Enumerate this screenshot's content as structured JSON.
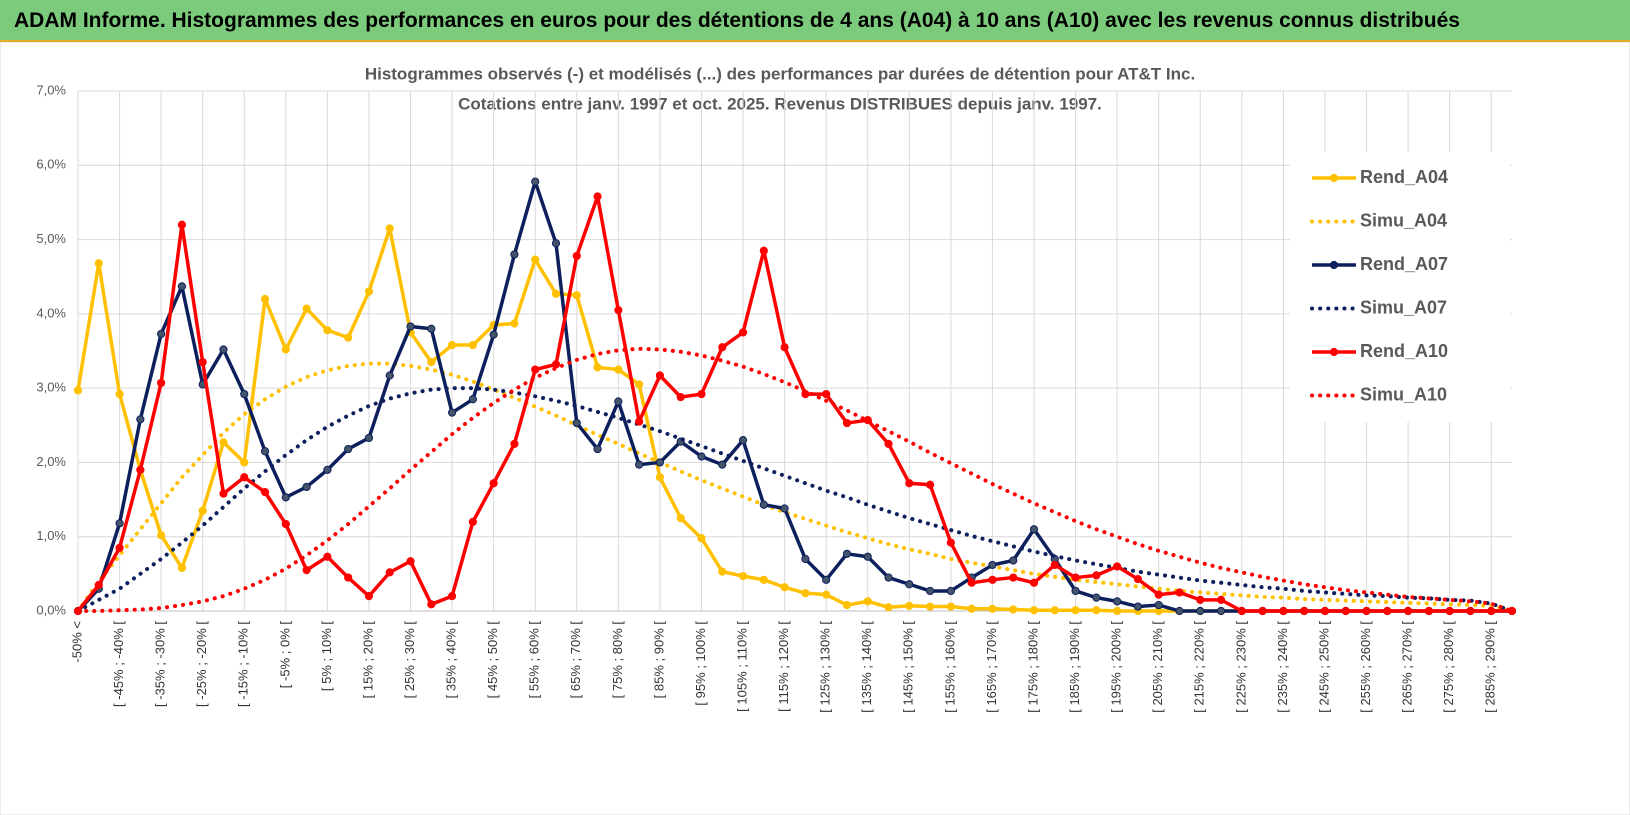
{
  "header": {
    "title": "ADAM Informe. Histogrammes des performances en euros pour des détentions de 4 ans (A04) à 10 ans (A10) avec les revenus connus distribués"
  },
  "chart_data": {
    "type": "line",
    "title": "Histogrammes observés (-) et modélisés (...) des performances par durées de détention pour AT&T Inc.",
    "subtitle": "Cotations entre janv. 1997 et oct. 2025.  Revenus DISTRIBUES depuis janv. 1997.",
    "categories": [
      "-50% <",
      null,
      "[ -45% ; -40% [",
      null,
      "[ -35% ; -30% [",
      null,
      "[ -25% ; -20% [",
      null,
      "[ -15% ; -10% [",
      null,
      "[ -5% ; 0% [",
      null,
      "[ 5% ; 10% [",
      null,
      "[ 15% ; 20% [",
      null,
      "[ 25% ; 30% [",
      null,
      "[ 35% ; 40% [",
      null,
      "[ 45% ; 50% [",
      null,
      "[ 55% ; 60% [",
      null,
      "[ 65% ; 70% [",
      null,
      "[ 75% ; 80% [",
      null,
      "[ 85% ; 90% [",
      null,
      "[ 95% ; 100% [",
      null,
      "[ 105% ; 110% [",
      null,
      "[ 115% ; 120% [",
      null,
      "[ 125% ; 130% [",
      null,
      "[ 135% ; 140% [",
      null,
      "[ 145% ; 150% [",
      null,
      "[ 155% ; 160% [",
      null,
      "[ 165% ; 170% [",
      null,
      "[ 175% ; 180% [",
      null,
      "[ 185% ; 190% [",
      null,
      "[ 195% ; 200% [",
      null,
      "[ 205% ; 210% [",
      null,
      "[ 215% ; 220% [",
      null,
      "[ 225% ; 230% [",
      null,
      "[ 235% ; 240% [",
      null,
      "[ 245% ; 250% [",
      null,
      "[ 255% ; 260% [",
      null,
      "[ 265% ; 270% [",
      null,
      "[ 275% ; 280% [",
      null,
      "[ 285% ; 290% [",
      null
    ],
    "series": [
      {
        "name": "Rend_A04",
        "color": "#ffc000",
        "style": "solid",
        "markers": true,
        "values": [
          2.97,
          4.68,
          2.92,
          1.9,
          1.02,
          0.58,
          1.35,
          2.27,
          2.0,
          4.2,
          3.52,
          4.07,
          3.78,
          3.68,
          4.3,
          5.15,
          3.75,
          3.35,
          3.58,
          3.58,
          3.85,
          3.87,
          4.73,
          4.27,
          4.25,
          3.28,
          3.25,
          3.05,
          1.8,
          1.25,
          0.98,
          0.53,
          0.47,
          0.42,
          0.32,
          0.24,
          0.22,
          0.08,
          0.13,
          0.05,
          0.07,
          0.06,
          0.06,
          0.03,
          0.03,
          0.02,
          0.01,
          0.01,
          0.01,
          0.01,
          0,
          0,
          0,
          0,
          0,
          0,
          0,
          0,
          0,
          0,
          0,
          0,
          0,
          0,
          0,
          0,
          0,
          0,
          0,
          0
        ]
      },
      {
        "name": "Simu_A04",
        "color": "#ffc000",
        "style": "dotted",
        "markers": false,
        "values": [
          0,
          0.4,
          0.75,
          1.1,
          1.45,
          1.8,
          2.1,
          2.4,
          2.65,
          2.85,
          3.02,
          3.15,
          3.24,
          3.3,
          3.33,
          3.33,
          3.3,
          3.25,
          3.18,
          3.09,
          2.98,
          2.87,
          2.75,
          2.63,
          2.5,
          2.37,
          2.25,
          2.12,
          2.0,
          1.88,
          1.76,
          1.65,
          1.54,
          1.43,
          1.33,
          1.24,
          1.15,
          1.06,
          0.98,
          0.9,
          0.83,
          0.77,
          0.7,
          0.65,
          0.6,
          0.55,
          0.5,
          0.46,
          0.42,
          0.39,
          0.36,
          0.33,
          0.3,
          0.27,
          0.25,
          0.23,
          0.21,
          0.19,
          0.18,
          0.16,
          0.15,
          0.14,
          0.13,
          0.12,
          0.11,
          0.1,
          0.09,
          0.08,
          0.07,
          0
        ]
      },
      {
        "name": "Rend_A07",
        "color": "#0d1f5c",
        "style": "solid",
        "markers": true,
        "values": [
          0,
          0.3,
          1.18,
          2.58,
          3.73,
          4.37,
          3.05,
          3.52,
          2.92,
          2.15,
          1.53,
          1.67,
          1.9,
          2.18,
          2.33,
          3.17,
          3.83,
          3.8,
          2.67,
          2.85,
          3.72,
          4.8,
          5.78,
          4.95,
          2.53,
          2.18,
          2.82,
          1.97,
          2.0,
          2.28,
          2.08,
          1.97,
          2.3,
          1.43,
          1.38,
          0.7,
          0.42,
          0.77,
          0.73,
          0.45,
          0.36,
          0.27,
          0.27,
          0.45,
          0.62,
          0.68,
          1.1,
          0.7,
          0.27,
          0.18,
          0.13,
          0.06,
          0.08,
          0,
          0,
          0,
          0,
          0,
          0,
          0,
          0,
          0,
          0,
          0,
          0,
          0,
          0,
          0,
          0,
          0
        ]
      },
      {
        "name": "Simu_A07",
        "color": "#0d1f5c",
        "style": "dotted",
        "markers": false,
        "values": [
          0,
          0.15,
          0.3,
          0.5,
          0.7,
          0.92,
          1.15,
          1.4,
          1.65,
          1.88,
          2.1,
          2.3,
          2.48,
          2.63,
          2.76,
          2.86,
          2.93,
          2.98,
          3.0,
          3.0,
          2.98,
          2.94,
          2.89,
          2.83,
          2.76,
          2.68,
          2.6,
          2.51,
          2.42,
          2.32,
          2.22,
          2.12,
          2.02,
          1.92,
          1.82,
          1.72,
          1.62,
          1.53,
          1.43,
          1.34,
          1.25,
          1.17,
          1.09,
          1.01,
          0.94,
          0.87,
          0.8,
          0.74,
          0.68,
          0.63,
          0.58,
          0.53,
          0.49,
          0.45,
          0.41,
          0.38,
          0.35,
          0.32,
          0.3,
          0.27,
          0.25,
          0.23,
          0.21,
          0.2,
          0.18,
          0.17,
          0.15,
          0.14,
          0.1,
          0
        ]
      },
      {
        "name": "Rend_A10",
        "color": "#ff0000",
        "style": "solid",
        "markers": true,
        "values": [
          0,
          0.35,
          0.85,
          1.9,
          3.07,
          5.2,
          3.35,
          1.58,
          1.8,
          1.6,
          1.17,
          0.55,
          0.73,
          0.45,
          0.2,
          0.52,
          0.67,
          0.09,
          0.2,
          1.2,
          1.72,
          2.25,
          3.25,
          3.32,
          4.78,
          5.58,
          4.05,
          2.55,
          3.17,
          2.88,
          2.92,
          3.55,
          3.75,
          4.85,
          3.55,
          2.92,
          2.92,
          2.53,
          2.57,
          2.25,
          1.72,
          1.7,
          0.92,
          0.38,
          0.42,
          0.45,
          0.38,
          0.62,
          0.45,
          0.48,
          0.6,
          0.43,
          0.22,
          0.25,
          0.15,
          0.15,
          0,
          0,
          0,
          0,
          0,
          0,
          0,
          0,
          0,
          0,
          0,
          0,
          0,
          0
        ]
      },
      {
        "name": "Simu_A10",
        "color": "#ff0000",
        "style": "dotted",
        "markers": false,
        "values": [
          0,
          0,
          0.01,
          0.02,
          0.04,
          0.08,
          0.13,
          0.2,
          0.3,
          0.42,
          0.57,
          0.75,
          0.95,
          1.17,
          1.41,
          1.65,
          1.9,
          2.14,
          2.38,
          2.6,
          2.8,
          2.98,
          3.14,
          3.27,
          3.38,
          3.46,
          3.51,
          3.53,
          3.52,
          3.49,
          3.44,
          3.37,
          3.29,
          3.19,
          3.08,
          2.96,
          2.83,
          2.7,
          2.56,
          2.42,
          2.28,
          2.13,
          1.99,
          1.85,
          1.71,
          1.58,
          1.45,
          1.33,
          1.21,
          1.1,
          1.0,
          0.9,
          0.81,
          0.73,
          0.65,
          0.58,
          0.52,
          0.46,
          0.41,
          0.36,
          0.32,
          0.28,
          0.25,
          0.22,
          0.19,
          0.17,
          0.15,
          0.13,
          0.1,
          0
        ]
      }
    ],
    "ylim": [
      0,
      7
    ],
    "yticks": [
      {
        "value": 0,
        "label": "0,0%"
      },
      {
        "value": 1,
        "label": "1,0%"
      },
      {
        "value": 2,
        "label": "2,0%"
      },
      {
        "value": 3,
        "label": "3,0%"
      },
      {
        "value": 4,
        "label": "4,0%"
      },
      {
        "value": 5,
        "label": "5,0%"
      },
      {
        "value": 6,
        "label": "6,0%"
      },
      {
        "value": 7,
        "label": "7,0%"
      }
    ],
    "grid": true,
    "legend": "right"
  }
}
